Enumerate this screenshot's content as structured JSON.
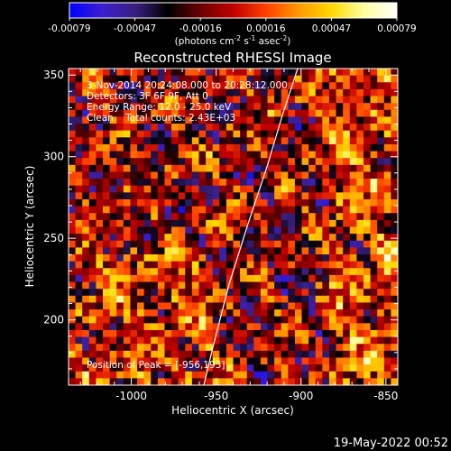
{
  "chart_data": {
    "type": "heatmap",
    "title": "Reconstructed RHESSI Image",
    "xlabel": "Heliocentric X (arcsec)",
    "ylabel": "Heliocentric Y (arcsec)",
    "xlim": [
      -1037,
      -843
    ],
    "ylim": [
      160,
      354
    ],
    "xticks": [
      -1000,
      -950,
      -900,
      -850
    ],
    "yticks": [
      200,
      250,
      300,
      350
    ],
    "colorbar": {
      "min": -0.00079,
      "max": 0.00079,
      "ticks": [
        "-0.00079",
        "-0.00047",
        "-0.00016",
        "0.00016",
        "0.00047",
        "0.00079"
      ],
      "label_main": "(photons cm",
      "label_sup1": "-2",
      "label_mid1": " s",
      "label_sup2": "-1",
      "label_mid2": " asec",
      "label_sup3": "-2",
      "label_end": ")",
      "colormap": [
        "#0000ff",
        "#3b1fd0",
        "#3a1f80",
        "#000000",
        "#6a0000",
        "#c00000",
        "#ff4000",
        "#ff9900",
        "#ffd800",
        "#ffffa0",
        "#ffffff"
      ]
    },
    "annotations": [
      "3-Nov-2014 20:24:08.000 to 20:28:12.000",
      "Detectors: 3F 6F 9F, Att 0",
      "Energy Range: 12.0 - 25.0 keV",
      "Clean    Total counts: 2.43E+03"
    ],
    "peak_label": "Position of Peak = [-956,193]",
    "limb_color": "#ffffff",
    "grid": false
  },
  "footer": {
    "timestamp": "19-May-2022 00:52"
  }
}
